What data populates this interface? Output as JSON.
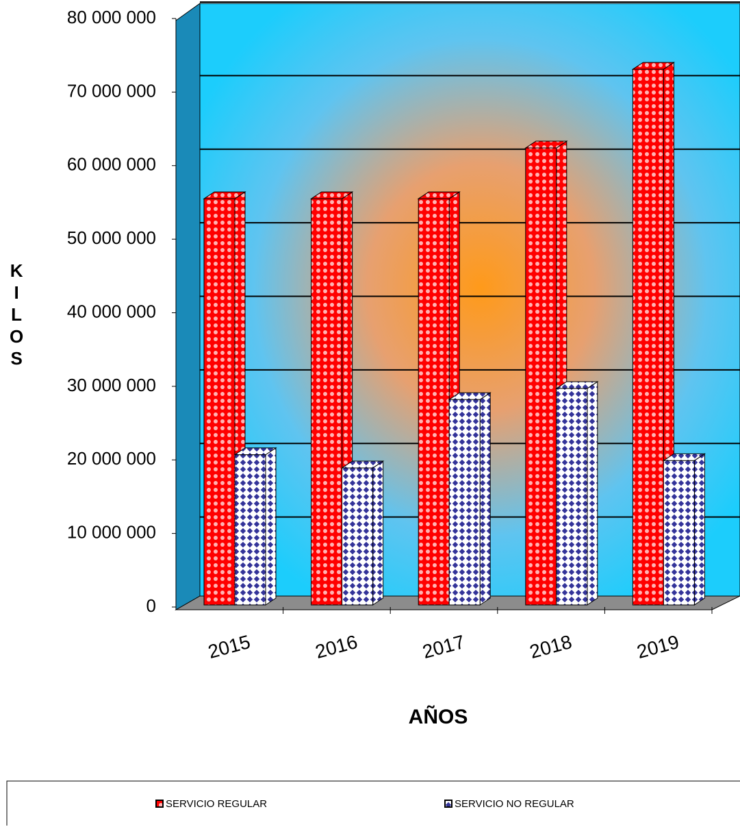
{
  "chart_data": {
    "type": "bar3d",
    "x_label": "AÑOS",
    "y_label": "KILOS",
    "categories": [
      "2015",
      "2016",
      "2017",
      "2018",
      "2019"
    ],
    "series": [
      {
        "name": "SERVICIO REGULAR",
        "color": "#ff0000",
        "values": [
          55500000,
          55500000,
          55500000,
          62400000,
          73100000
        ]
      },
      {
        "name": "SERVICIO NO REGULAR",
        "color": "#333399",
        "values": [
          20700000,
          18900000,
          28200000,
          29700000,
          19900000
        ]
      }
    ],
    "ylim": [
      0,
      80000000
    ],
    "yticks": [
      {
        "value": 0,
        "label": "0"
      },
      {
        "value": 10000000,
        "label": "10 000 000"
      },
      {
        "value": 20000000,
        "label": "20 000 000"
      },
      {
        "value": 30000000,
        "label": "30 000 000"
      },
      {
        "value": 40000000,
        "label": "40 000 000"
      },
      {
        "value": 50000000,
        "label": "50 000 000"
      },
      {
        "value": 60000000,
        "label": "60 000 000"
      },
      {
        "value": 70000000,
        "label": "70 000 000"
      },
      {
        "value": 80000000,
        "label": "80 000 000"
      }
    ],
    "grid": true,
    "legend": "bottom"
  }
}
